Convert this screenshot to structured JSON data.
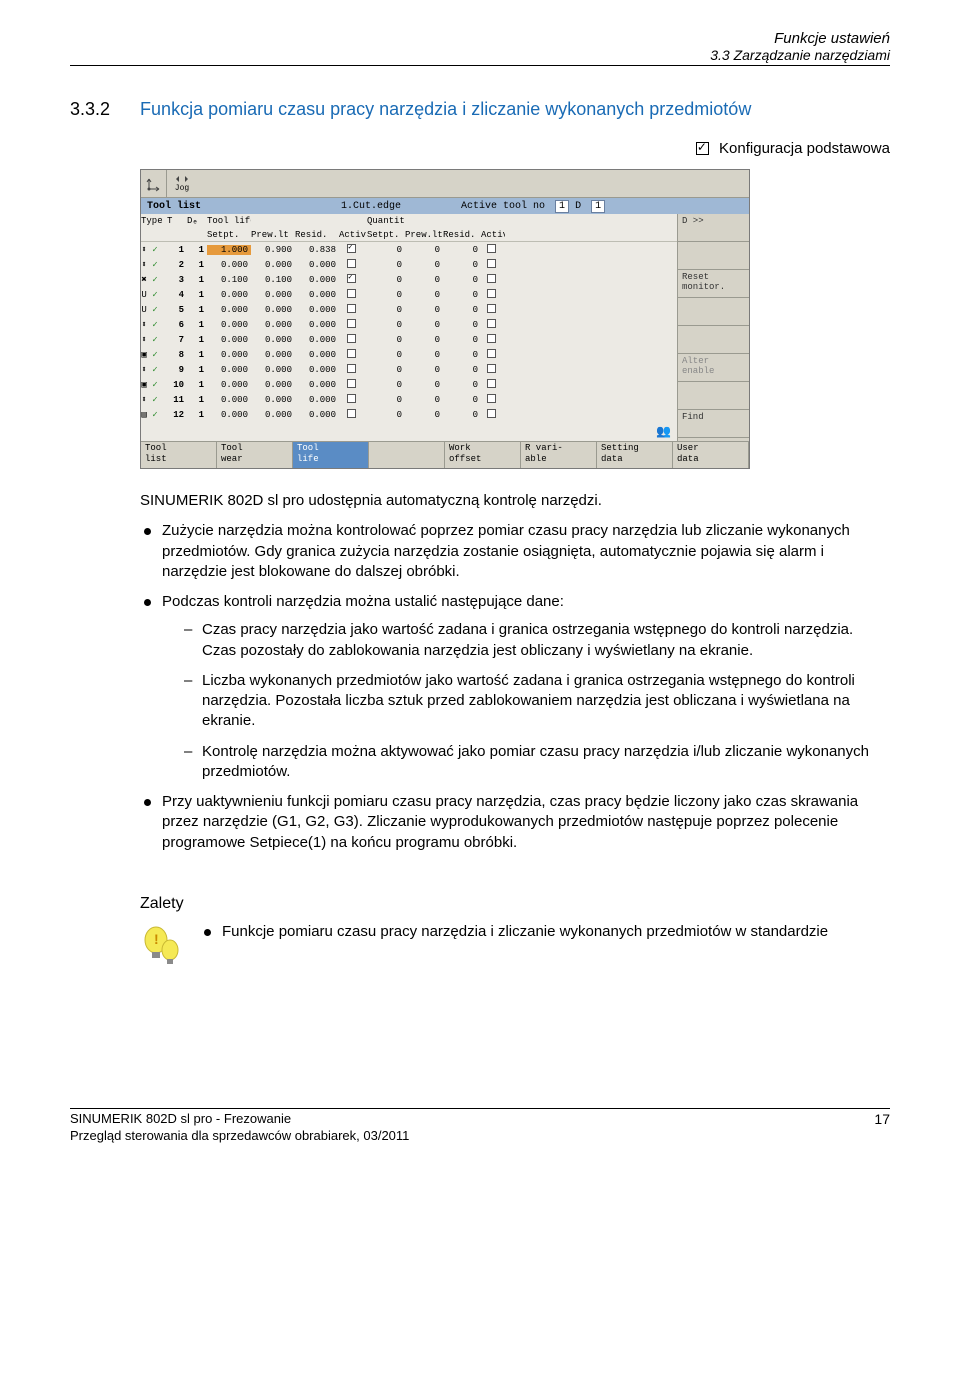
{
  "header": {
    "chapter": "Funkcje ustawień",
    "section": "3.3 Zarządzanie narzędziami"
  },
  "section_num": "3.3.2",
  "section_title": "Funkcja pomiaru czasu pracy narzędzia i zliczanie wykonanych przedmiotów",
  "config_label": "Konfiguracja podstawowa",
  "shot": {
    "jog_label": "Jog",
    "bluebar": {
      "title": "Tool list",
      "cut_edge": "1.Cut.edge",
      "active_tool": "Active tool no",
      "active_val": "1",
      "d_label": "D",
      "d_val": "1",
      "d_arrow": "D >>"
    },
    "columns1": [
      "Type",
      "T",
      "Dₑ",
      "Tool life [min]",
      "",
      "",
      "",
      "Quantity",
      "",
      "",
      ""
    ],
    "columns2": [
      "",
      "",
      "",
      "Setpt.",
      "Prew.lt",
      "Resid.",
      "Activ",
      "Setpt.",
      "Prew.lt",
      "Resid.",
      "Activ"
    ],
    "sidebar": [
      {
        "label": "D >>",
        "disabled": false
      },
      {
        "label": "",
        "disabled": true
      },
      {
        "label": "Reset monitor.",
        "disabled": false
      },
      {
        "label": "",
        "disabled": true
      },
      {
        "label": "",
        "disabled": true
      },
      {
        "label": "Alter enable",
        "disabled": true
      },
      {
        "label": "",
        "disabled": true
      },
      {
        "label": "Find",
        "disabled": false
      }
    ],
    "rows": [
      {
        "t": "1",
        "d": "1",
        "setpt": "1.000",
        "prew": "0.900",
        "resid": "0.838",
        "a1": true,
        "qs": "0",
        "qp": "0",
        "qr": "0",
        "a2": false,
        "hl": true
      },
      {
        "t": "2",
        "d": "1",
        "setpt": "0.000",
        "prew": "0.000",
        "resid": "0.000",
        "a1": false,
        "qs": "0",
        "qp": "0",
        "qr": "0",
        "a2": false
      },
      {
        "t": "3",
        "d": "1",
        "setpt": "0.100",
        "prew": "0.100",
        "resid": "0.000",
        "a1": true,
        "qs": "0",
        "qp": "0",
        "qr": "0",
        "a2": false
      },
      {
        "t": "4",
        "d": "1",
        "setpt": "0.000",
        "prew": "0.000",
        "resid": "0.000",
        "a1": false,
        "qs": "0",
        "qp": "0",
        "qr": "0",
        "a2": false
      },
      {
        "t": "5",
        "d": "1",
        "setpt": "0.000",
        "prew": "0.000",
        "resid": "0.000",
        "a1": false,
        "qs": "0",
        "qp": "0",
        "qr": "0",
        "a2": false
      },
      {
        "t": "6",
        "d": "1",
        "setpt": "0.000",
        "prew": "0.000",
        "resid": "0.000",
        "a1": false,
        "qs": "0",
        "qp": "0",
        "qr": "0",
        "a2": false
      },
      {
        "t": "7",
        "d": "1",
        "setpt": "0.000",
        "prew": "0.000",
        "resid": "0.000",
        "a1": false,
        "qs": "0",
        "qp": "0",
        "qr": "0",
        "a2": false
      },
      {
        "t": "8",
        "d": "1",
        "setpt": "0.000",
        "prew": "0.000",
        "resid": "0.000",
        "a1": false,
        "qs": "0",
        "qp": "0",
        "qr": "0",
        "a2": false
      },
      {
        "t": "9",
        "d": "1",
        "setpt": "0.000",
        "prew": "0.000",
        "resid": "0.000",
        "a1": false,
        "qs": "0",
        "qp": "0",
        "qr": "0",
        "a2": false
      },
      {
        "t": "10",
        "d": "1",
        "setpt": "0.000",
        "prew": "0.000",
        "resid": "0.000",
        "a1": false,
        "qs": "0",
        "qp": "0",
        "qr": "0",
        "a2": false
      },
      {
        "t": "11",
        "d": "1",
        "setpt": "0.000",
        "prew": "0.000",
        "resid": "0.000",
        "a1": false,
        "qs": "0",
        "qp": "0",
        "qr": "0",
        "a2": false
      },
      {
        "t": "12",
        "d": "1",
        "setpt": "0.000",
        "prew": "0.000",
        "resid": "0.000",
        "a1": false,
        "qs": "0",
        "qp": "0",
        "qr": "0",
        "a2": false
      }
    ],
    "footer_tabs": [
      {
        "l1": "Tool",
        "l2": "list"
      },
      {
        "l1": "Tool",
        "l2": "wear"
      },
      {
        "l1": "Tool",
        "l2": "life",
        "active": true
      },
      {
        "l1": "",
        "l2": ""
      },
      {
        "l1": "Work",
        "l2": "offset"
      },
      {
        "l1": "R vari-",
        "l2": "able"
      },
      {
        "l1": "Setting",
        "l2": "data"
      },
      {
        "l1": "User",
        "l2": "data"
      }
    ],
    "person_icon": "👥"
  },
  "intro": "SINUMERIK 802D sl pro udostępnia automatyczną kontrolę narzędzi.",
  "bul1": "Zużycie narzędzia można kontrolować poprzez pomiar czasu pracy narzędzia lub zliczanie wykonanych przedmiotów. Gdy granica zużycia narzędzia zostanie osiągnięta, automatycznie pojawia się alarm i narzędzie jest blokowane do dalszej obróbki.",
  "bul2": "Podczas kontroli narzędzia można ustalić następujące dane:",
  "dash1": "Czas pracy narzędzia jako wartość zadana i granica ostrzegania wstępnego do kontroli narzędzia. Czas pozostały do zablokowania narzędzia jest obliczany i wyświetlany na ekranie.",
  "dash2": "Liczba wykonanych przedmiotów jako wartość zadana i granica ostrzegania wstępnego do kontroli narzędzia. Pozostała liczba sztuk przed zablokowaniem narzędzia jest obliczana i wyświetlana na ekranie.",
  "dash3": "Kontrolę narzędzia można aktywować jako pomiar czasu pracy narzędzia i/lub zliczanie wykonanych przedmiotów.",
  "bul3": "Przy uaktywnieniu funkcji pomiaru czasu pracy narzędzia, czas pracy będzie liczony jako czas skrawania przez narzędzie (G1, G2, G3). Zliczanie wyprodukowanych przedmiotów następuje poprzez polecenie programowe Setpiece(1) na końcu programu obróbki.",
  "zalety_label": "Zalety",
  "zalety_bullet": "Funkcje pomiaru czasu pracy narzędzia i zliczanie wykonanych przedmiotów w standardzie",
  "footer": {
    "line1": "SINUMERIK 802D sl pro - Frezowanie",
    "line2": "Przegląd sterowania dla sprzedawców obrabiarek, 03/2011",
    "page": "17"
  }
}
